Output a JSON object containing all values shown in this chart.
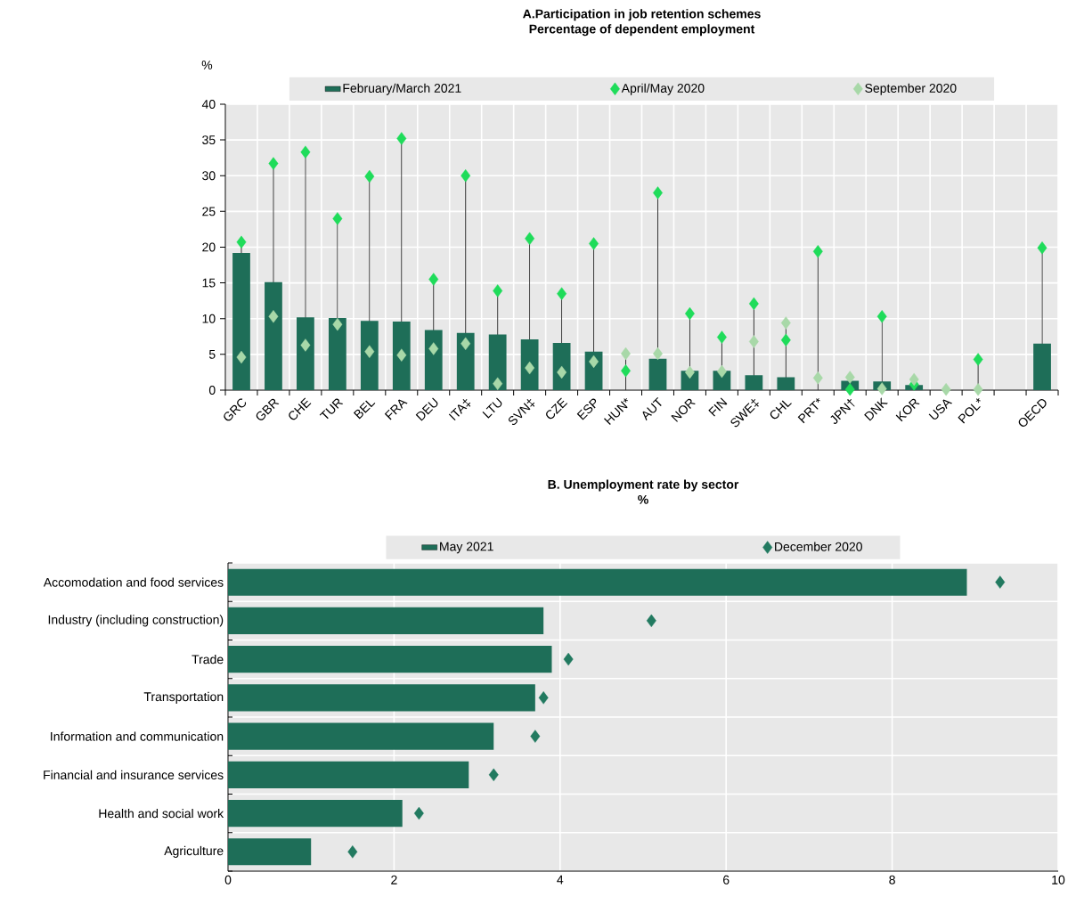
{
  "chart_data": [
    {
      "type": "bar",
      "title": "A.Participation in job retention schemes",
      "subtitle": "Percentage of dependent employment",
      "ylabel": "%",
      "categories": [
        "GRC",
        "GBR",
        "CHE",
        "TUR",
        "BEL",
        "FRA",
        "DEU",
        "ITA‡",
        "LTU",
        "SVN‡",
        "CZE",
        "ESP",
        "HUN*",
        "AUT",
        "NOR",
        "FIN",
        "SWE‡",
        "CHL",
        "PRT*",
        "JPN†",
        "DNK",
        "KOR",
        "USA",
        "POL*",
        null,
        "OECD"
      ],
      "series": [
        {
          "name": "February/March 2021",
          "type": "bar",
          "color": "#1e6e58",
          "values": [
            19.2,
            15.1,
            10.2,
            10.1,
            9.7,
            9.6,
            8.4,
            8.0,
            7.8,
            7.1,
            6.6,
            5.4,
            null,
            4.4,
            2.7,
            2.7,
            2.1,
            1.8,
            null,
            1.3,
            1.2,
            0.7,
            null,
            null,
            null,
            6.5
          ]
        },
        {
          "name": "April/May 2020",
          "type": "scatter",
          "color": "#1fdc5a",
          "marker": "diamond",
          "values": [
            20.7,
            31.7,
            33.3,
            24.0,
            29.9,
            35.2,
            15.5,
            30.0,
            13.9,
            21.2,
            13.5,
            20.5,
            2.7,
            27.6,
            10.7,
            7.4,
            12.1,
            7.0,
            19.4,
            0.1,
            10.3,
            0.8,
            null,
            4.3,
            null,
            19.9
          ]
        },
        {
          "name": "September 2020",
          "type": "scatter",
          "color": "#a8d8a8",
          "marker": "diamond",
          "values": [
            4.6,
            10.3,
            6.3,
            9.2,
            5.4,
            4.9,
            5.8,
            6.5,
            0.9,
            3.1,
            2.5,
            4.0,
            5.1,
            5.1,
            2.5,
            2.6,
            6.8,
            9.4,
            1.7,
            1.8,
            0.2,
            1.5,
            0.1,
            0.1,
            null,
            null
          ]
        }
      ],
      "ylim": [
        0,
        40
      ],
      "yticks": [
        0,
        5,
        10,
        15,
        20,
        25,
        30,
        35,
        40
      ],
      "grid": true,
      "legend": "top"
    },
    {
      "type": "bar",
      "orientation": "horizontal",
      "title": "B. Unemployment rate by sector",
      "subtitle": "%",
      "categories": [
        "Accomodation and food services",
        "Industry (including construction)",
        "Trade",
        "Transportation",
        "Information and communication",
        "Financial and insurance services",
        "Health and social work",
        "Agriculture"
      ],
      "series": [
        {
          "name": "May 2021",
          "type": "bar",
          "color": "#1e6e58",
          "values": [
            8.9,
            3.8,
            3.9,
            3.7,
            3.2,
            2.9,
            2.1,
            1.0
          ]
        },
        {
          "name": "December 2020",
          "type": "scatter",
          "color": "#227a60",
          "marker": "diamond",
          "values": [
            9.3,
            5.1,
            4.1,
            3.8,
            3.7,
            3.2,
            2.3,
            1.5
          ]
        }
      ],
      "xlim": [
        0,
        10
      ],
      "xticks": [
        0,
        2,
        4,
        6,
        8,
        10
      ],
      "grid": true,
      "legend": "top"
    }
  ]
}
